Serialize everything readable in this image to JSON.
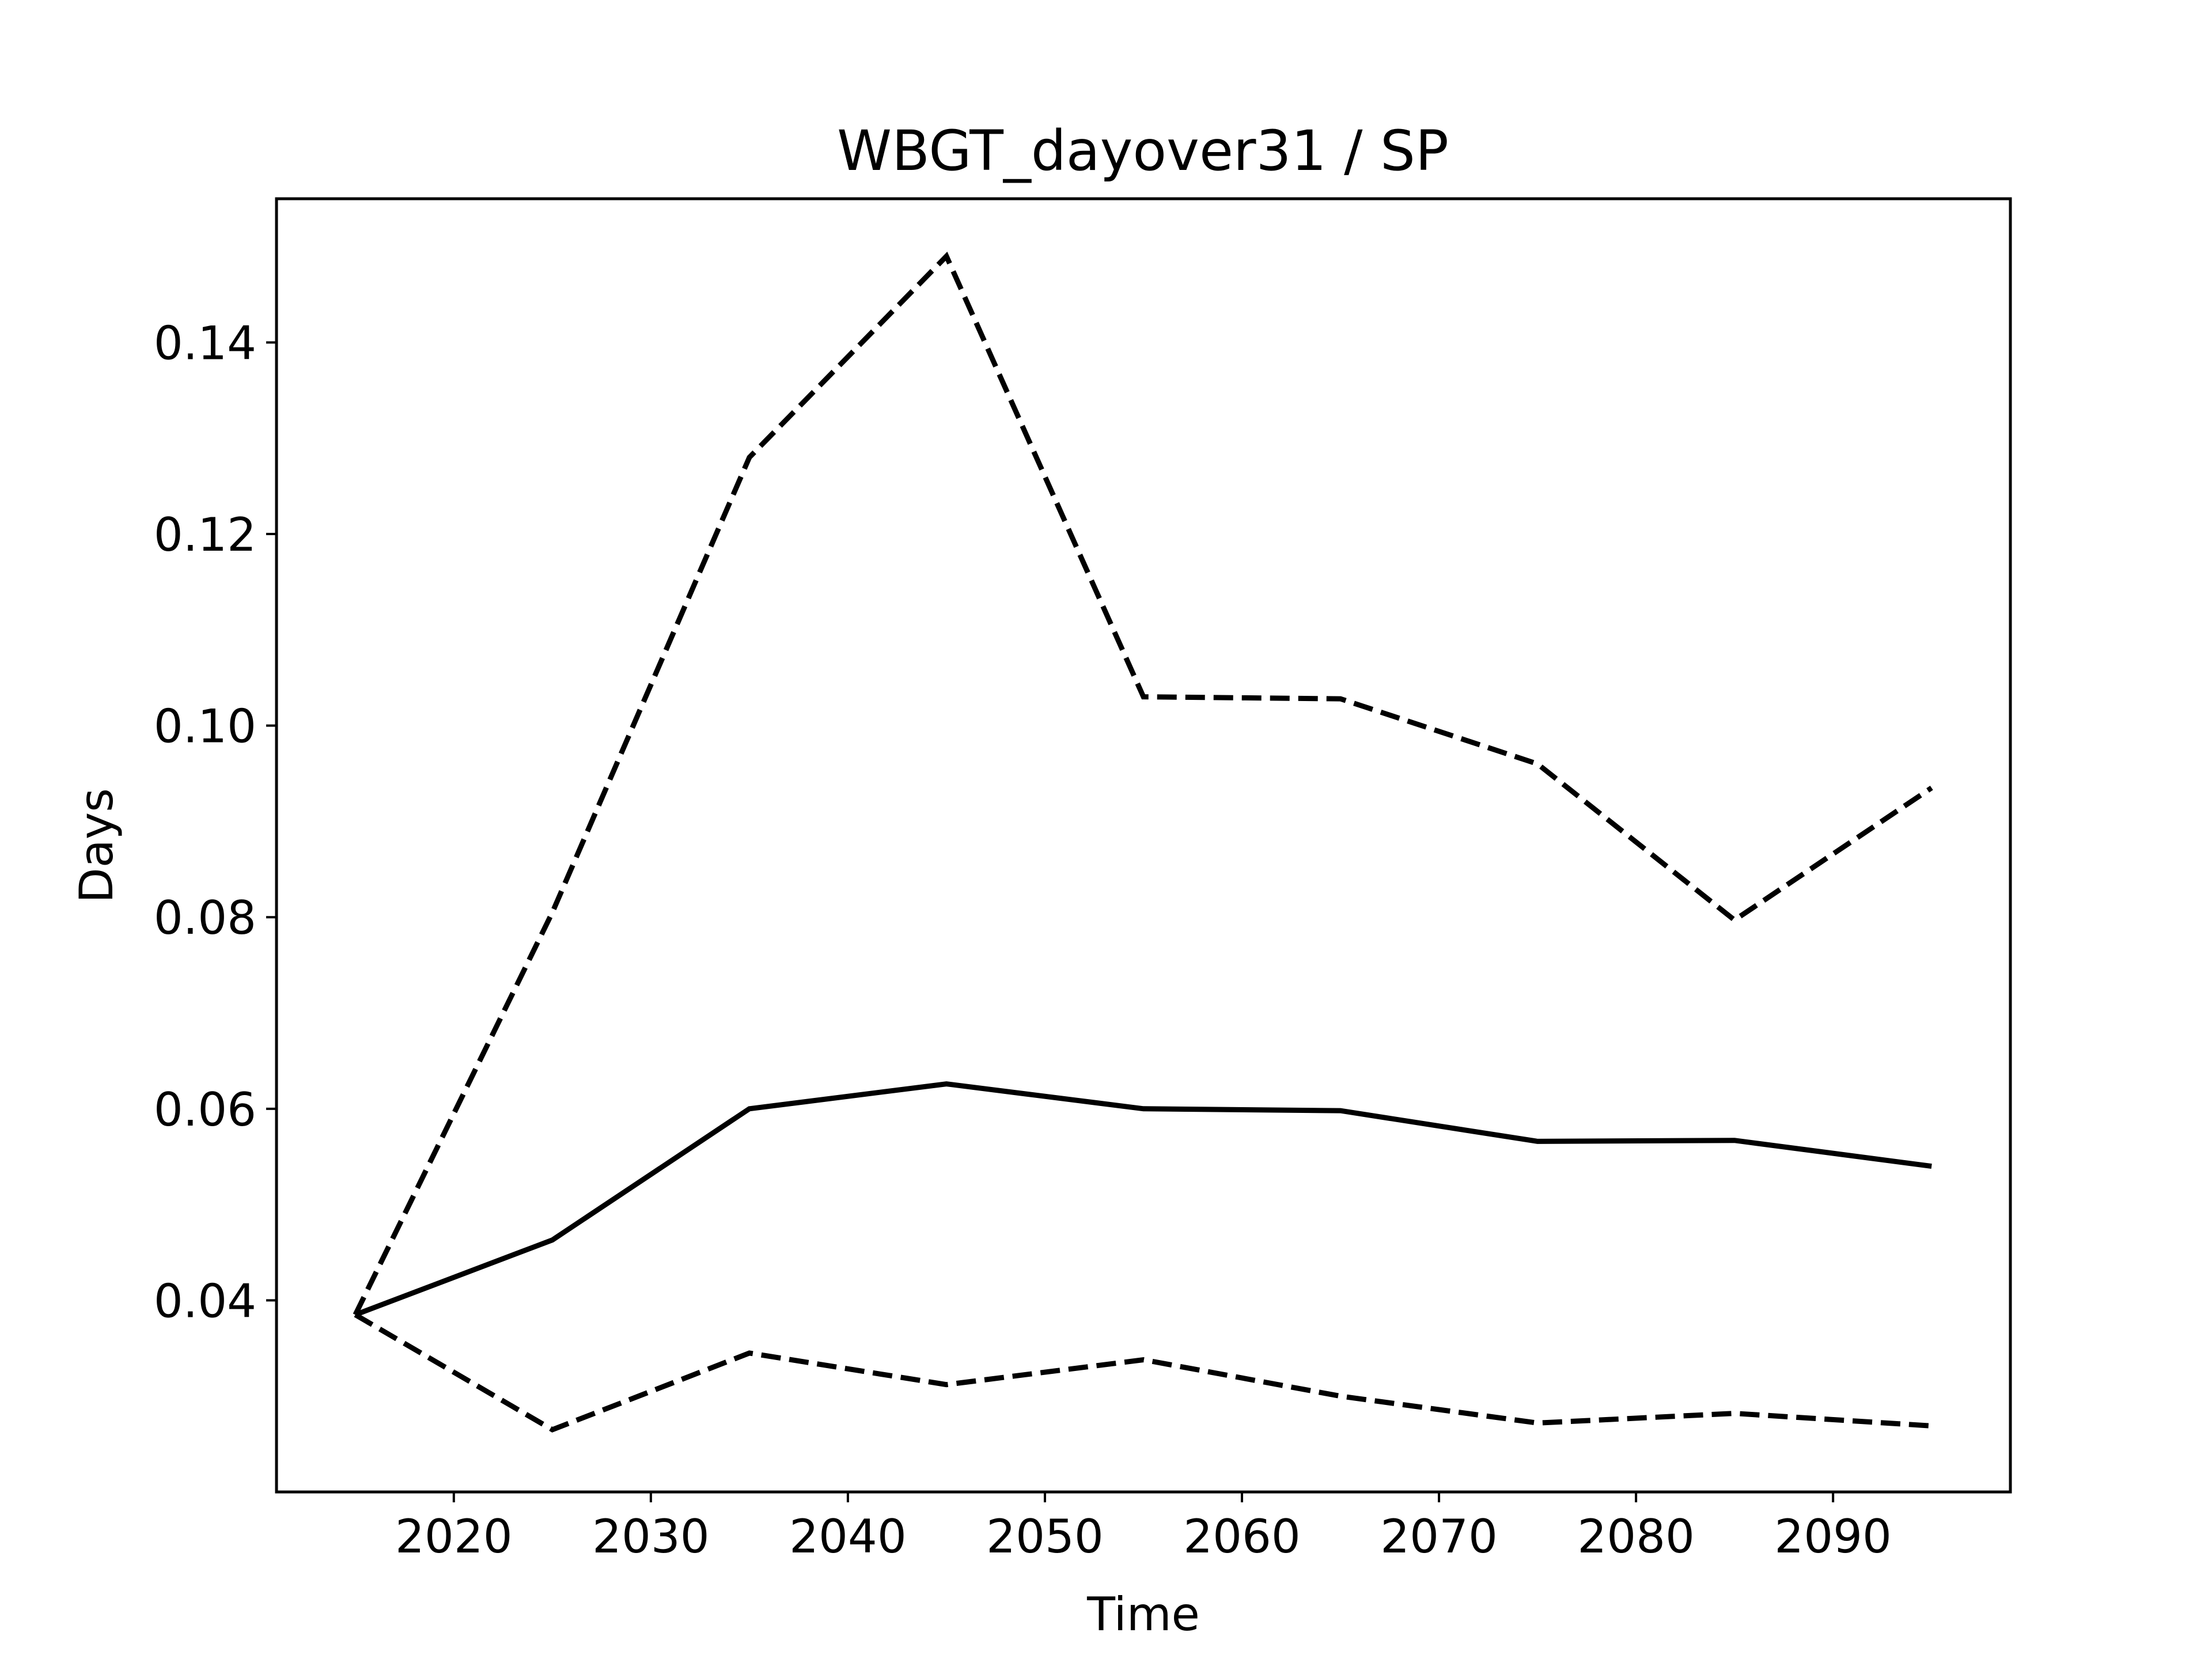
{
  "chart_data": {
    "type": "line",
    "title": "WBGT_dayover31 / SP",
    "xlabel": "Time",
    "ylabel": "Days",
    "xlim": [
      2011,
      2099
    ],
    "ylim": [
      0.02,
      0.155
    ],
    "grid": false,
    "x_ticks": [
      2020,
      2030,
      2040,
      2050,
      2060,
      2070,
      2080,
      2090
    ],
    "y_ticks": [
      0.04,
      0.06,
      0.08,
      0.1,
      0.12,
      0.14
    ],
    "x_tick_labels": [
      "2020",
      "2030",
      "2040",
      "2050",
      "2060",
      "2070",
      "2080",
      "2090"
    ],
    "y_tick_labels": [
      "0.04",
      "0.06",
      "0.08",
      "0.10",
      "0.12",
      "0.14"
    ],
    "x": [
      2015,
      2025,
      2035,
      2045,
      2055,
      2065,
      2075,
      2085,
      2095
    ],
    "series": [
      {
        "style": "dashed",
        "color": "#000000",
        "values": [
          0.0385,
          0.0805,
          0.128,
          0.149,
          0.103,
          0.1028,
          0.096,
          0.0797,
          0.0935
        ]
      },
      {
        "style": "solid",
        "color": "#000000",
        "values": [
          0.0385,
          0.0463,
          0.06,
          0.0626,
          0.06,
          0.0598,
          0.0566,
          0.0567,
          0.054
        ]
      },
      {
        "style": "dashed",
        "color": "#000000",
        "values": [
          0.0385,
          0.0265,
          0.0345,
          0.0312,
          0.0338,
          0.03,
          0.0272,
          0.0282,
          0.0269
        ]
      }
    ]
  }
}
